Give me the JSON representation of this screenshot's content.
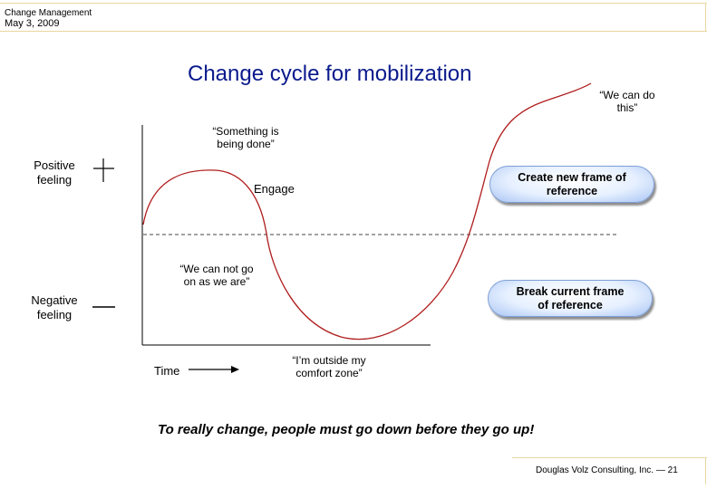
{
  "header": {
    "section": "Change Management",
    "date": "May 3, 2009"
  },
  "title": "Change cycle for mobilization",
  "diagram": {
    "positive_label": "Positive feeling",
    "negative_label": "Negative feeling",
    "time_label": "Time",
    "annotations": {
      "something_done": "“Something is being done”",
      "engage": "Engage",
      "can_not_go_on": "“We can not go on as we are”",
      "outside_comfort": "“I’m outside my comfort zone”",
      "we_can_do": "“We can do this”"
    },
    "boxes": {
      "create_frame": "Create new frame of reference",
      "break_frame": "Break current frame of reference"
    },
    "curve_color": "#b01c1c",
    "pill_color": "#a8c4f4"
  },
  "tagline": "To really change, people must go down before they go up!",
  "footer": {
    "company": "Douglas Volz Consulting, Inc.",
    "separator": "—",
    "page": "21"
  }
}
